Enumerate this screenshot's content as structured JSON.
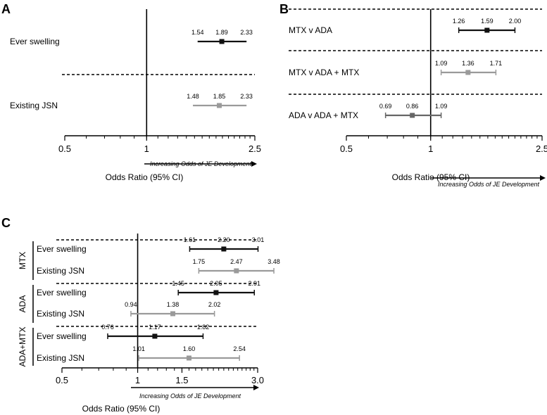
{
  "colors": {
    "black": "#111111",
    "grey": "#9a9a9a",
    "darkgrey": "#666666"
  },
  "arrow_text": "Increasing Odds of JE Development",
  "axis_title": "Odds Ratio (95%  CI)",
  "chart_data": [
    {
      "panel": "A",
      "type": "forest",
      "xscale": "log",
      "xlim": [
        0.5,
        2.5
      ],
      "ticks": [
        0.5,
        1,
        2.5
      ],
      "tick_labels": [
        "0.5",
        "1",
        "2.5"
      ],
      "reference": 1,
      "xlabel": "Odds Ratio (95%  CI)",
      "arrow_text": "Increasing Odds of JE Development",
      "rows": [
        {
          "label": "Ever swelling",
          "lo": 1.54,
          "or": 1.89,
          "hi": 2.33,
          "color": "black"
        },
        {
          "label": "Existing JSN",
          "lo": 1.48,
          "or": 1.85,
          "hi": 2.33,
          "color": "grey"
        }
      ]
    },
    {
      "panel": "B",
      "type": "forest",
      "xscale": "log",
      "xlim": [
        0.5,
        2.5
      ],
      "ticks": [
        0.5,
        1,
        2.5
      ],
      "tick_labels": [
        "0.5",
        "1",
        "2.5"
      ],
      "reference": 1,
      "xlabel": "Odds Ratio (95%  CI)",
      "arrow_text": "Increasing Odds of JE Development",
      "rows": [
        {
          "label": "MTX v ADA",
          "lo": 1.26,
          "or": 1.59,
          "hi": 2.0,
          "lo_text": "1.26",
          "or_text": "1.59",
          "hi_text": "2.00",
          "color": "black"
        },
        {
          "label": "MTX v ADA + MTX",
          "lo": 1.09,
          "or": 1.36,
          "hi": 1.71,
          "color": "grey"
        },
        {
          "label": "ADA v ADA + MTX",
          "lo": 0.69,
          "or": 0.86,
          "hi": 1.09,
          "color": "darkgrey"
        }
      ]
    },
    {
      "panel": "C",
      "type": "forest",
      "xscale": "log",
      "xlim": [
        0.5,
        3.0
      ],
      "ticks": [
        0.5,
        1,
        1.5,
        3.0
      ],
      "tick_labels": [
        "0.5",
        "1",
        "1.5",
        "3.0"
      ],
      "reference": 1,
      "xlabel": "Odds Ratio (95%  CI)",
      "arrow_text": "Increasing Odds of JE Development",
      "groups": [
        {
          "name": "MTX",
          "rows": [
            {
              "label": "Ever swelling",
              "lo": 1.61,
              "or": 2.2,
              "hi": 3.01,
              "lo_text": "1.61",
              "or_text": "2.20",
              "hi_text": "3.01",
              "color": "black"
            },
            {
              "label": "Existing JSN",
              "lo": 1.75,
              "or": 2.47,
              "hi": 3.48,
              "color": "grey"
            }
          ]
        },
        {
          "name": "ADA",
          "rows": [
            {
              "label": "Ever swelling",
              "lo": 1.45,
              "or": 2.05,
              "hi": 2.91,
              "color": "black"
            },
            {
              "label": "Existing JSN",
              "lo": 0.94,
              "or": 1.38,
              "hi": 2.02,
              "color": "grey"
            }
          ]
        },
        {
          "name": "ADA+MTX",
          "rows": [
            {
              "label": "Ever swelling",
              "lo": 0.76,
              "or": 1.17,
              "hi": 1.82,
              "color": "black"
            },
            {
              "label": "Existing JSN",
              "lo": 1.01,
              "or": 1.6,
              "hi": 2.54,
              "color": "grey"
            }
          ]
        }
      ]
    }
  ]
}
